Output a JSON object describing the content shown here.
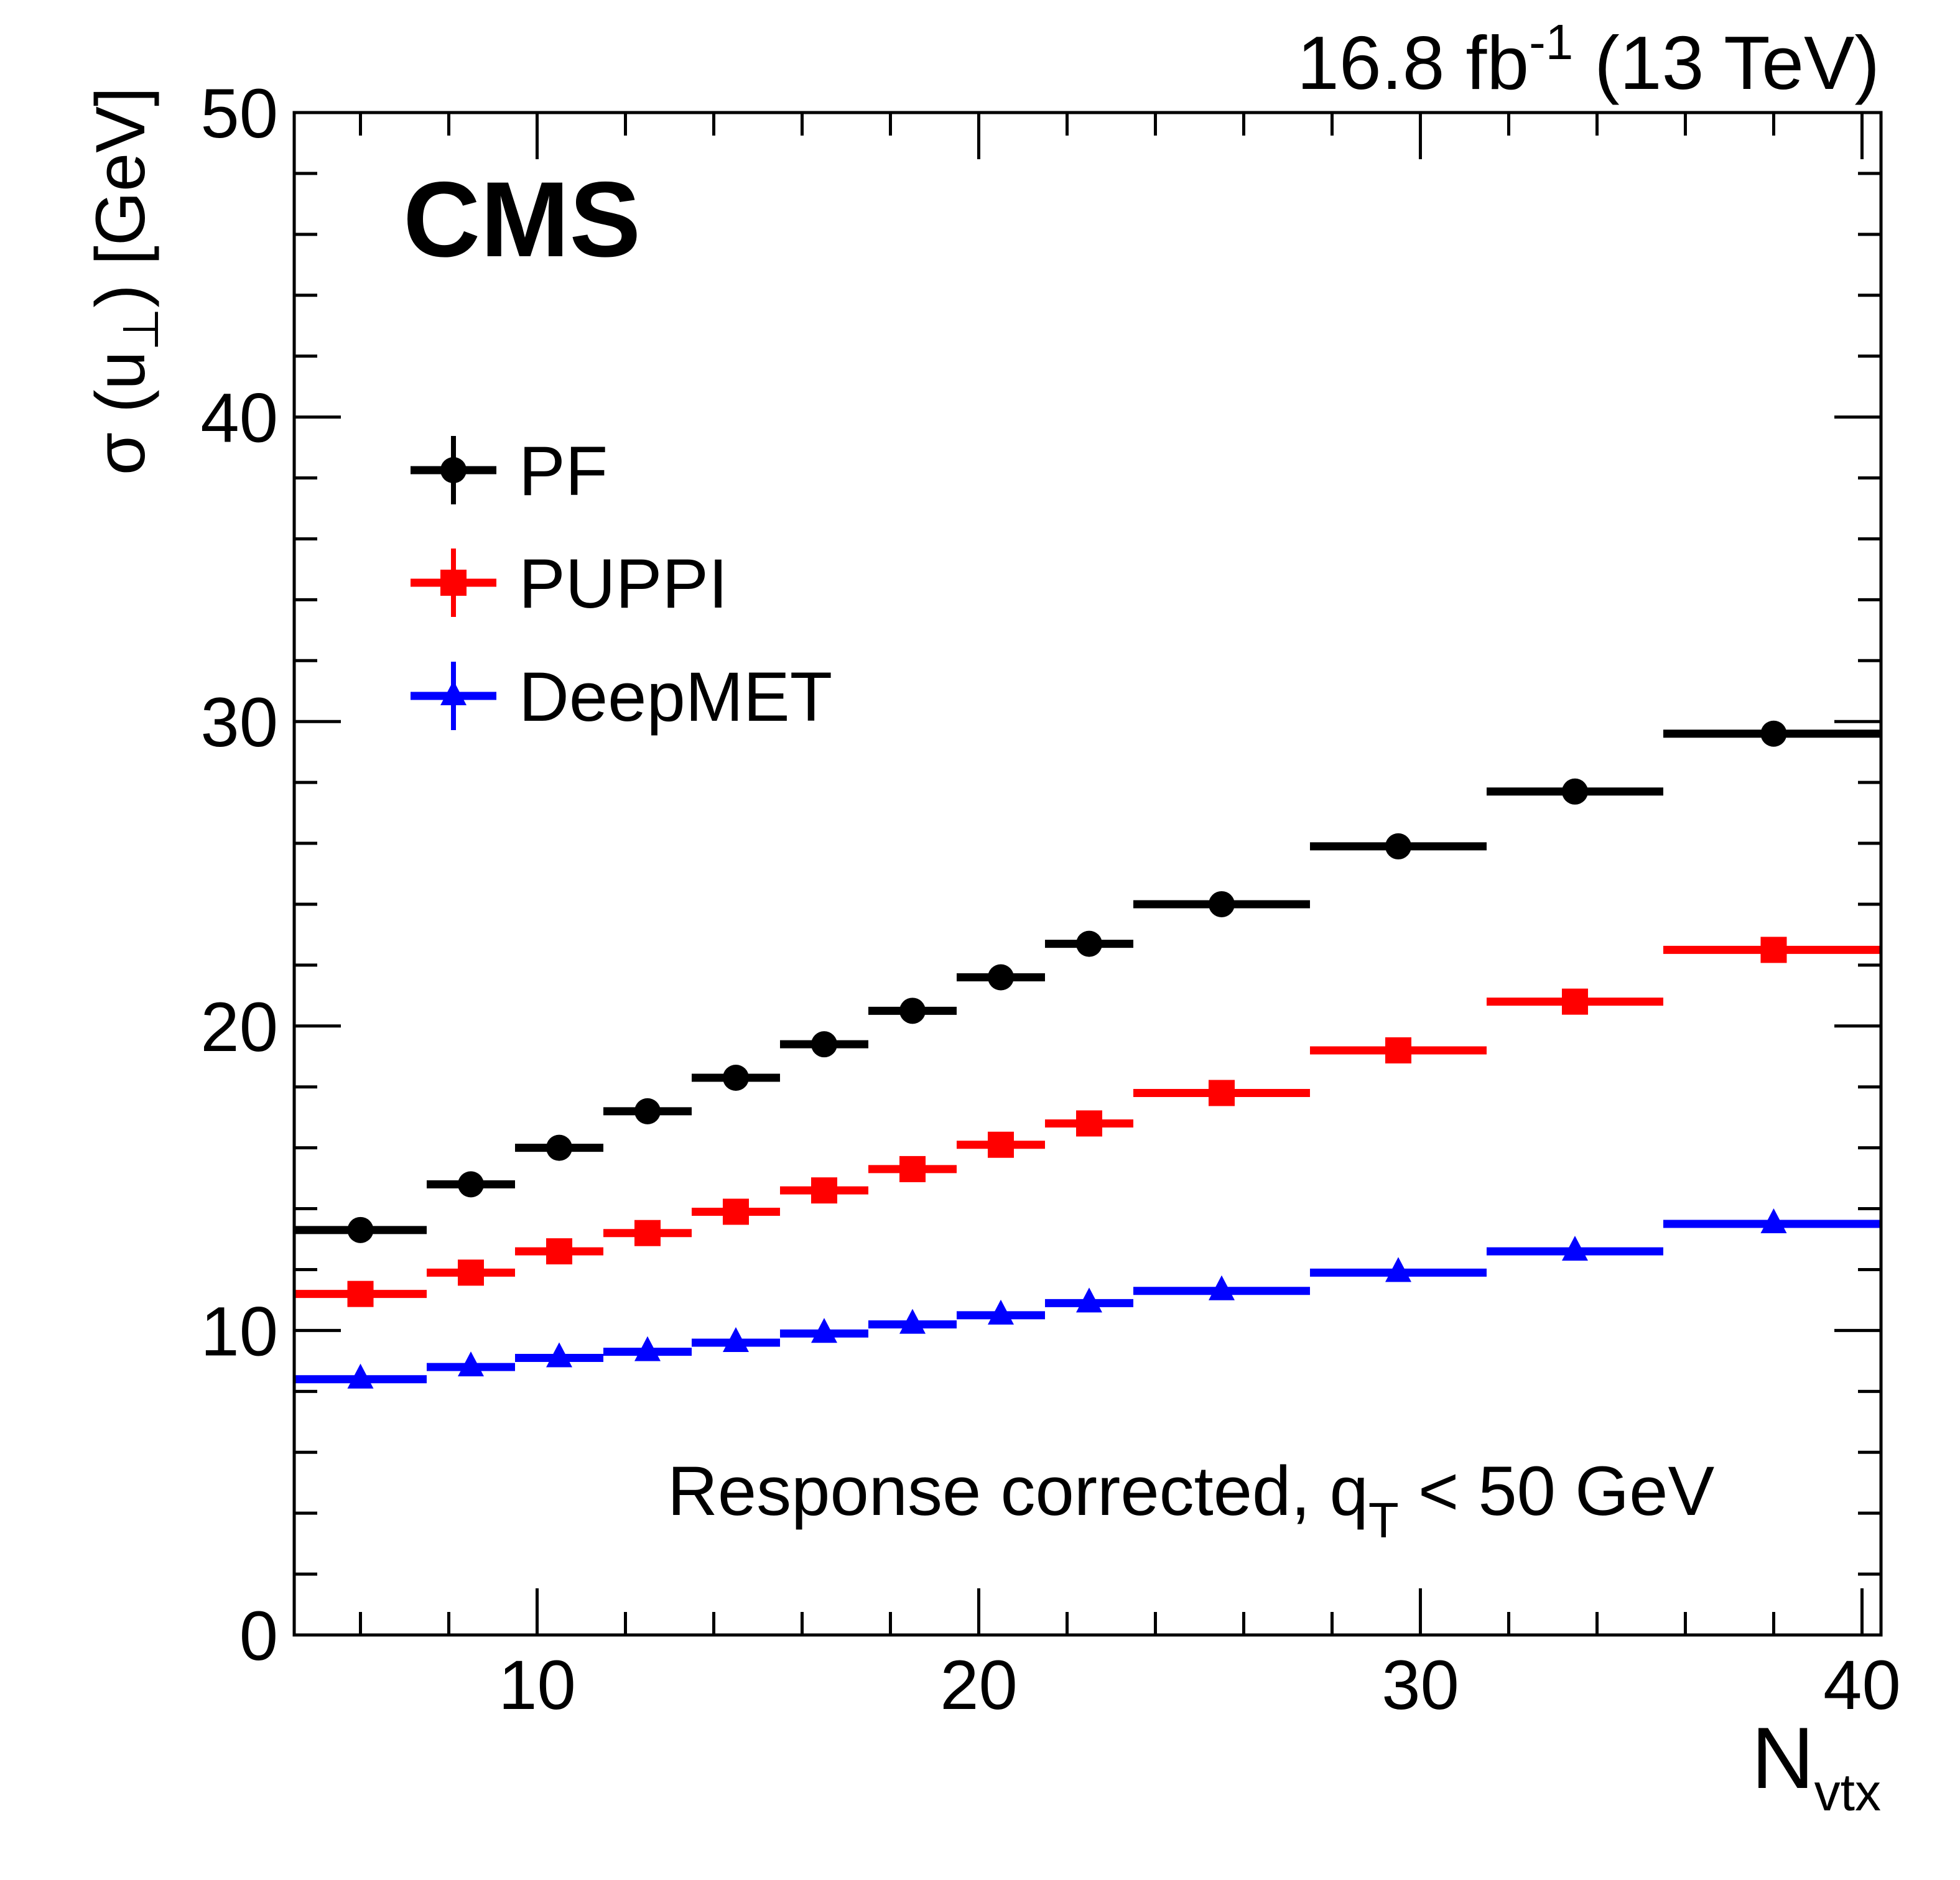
{
  "chart_data": {
    "type": "scatter",
    "style": "binned points with horizontal bin-width error bars",
    "experiment_label": "CMS",
    "lumi_label": {
      "main": "16.8 fb",
      "sup": "-1",
      "rest": " (13 TeV)"
    },
    "annotation": {
      "main": "Response corrected, q",
      "sub": "T",
      "rest": " < 50 GeV"
    },
    "xlabel": {
      "main": "N",
      "sub": "vtx"
    },
    "ylabel": {
      "pre": "σ (u",
      "sub": "⊥",
      "post": ") [GeV]"
    },
    "xlim": [
      4.5,
      40.43
    ],
    "ylim": [
      0,
      50
    ],
    "x_major_ticks": [
      10,
      20,
      30,
      40
    ],
    "x_minor_step": 2,
    "y_major_ticks": [
      0,
      10,
      20,
      30,
      40,
      50
    ],
    "y_minor_step": 2,
    "grid": false,
    "legend_position": "top-left",
    "bins": [
      [
        4.5,
        7.5
      ],
      [
        7.5,
        9.5
      ],
      [
        9.5,
        11.5
      ],
      [
        11.5,
        13.5
      ],
      [
        13.5,
        15.5
      ],
      [
        15.5,
        17.5
      ],
      [
        17.5,
        19.5
      ],
      [
        19.5,
        21.5
      ],
      [
        21.5,
        23.5
      ],
      [
        23.5,
        27.5
      ],
      [
        27.5,
        31.5
      ],
      [
        31.5,
        35.5
      ],
      [
        35.5,
        40.5
      ]
    ],
    "x": [
      6,
      8.5,
      10.5,
      12.5,
      14.5,
      16.5,
      18.5,
      20.5,
      22.5,
      25.5,
      29.5,
      33.5,
      38
    ],
    "series": [
      {
        "name": "PF",
        "color": "#000000",
        "marker": "circle",
        "values": [
          13.3,
          14.8,
          16.0,
          17.2,
          18.3,
          19.4,
          20.5,
          21.6,
          22.7,
          24.0,
          25.9,
          27.7,
          29.6
        ]
      },
      {
        "name": "PUPPI",
        "color": "#ff0000",
        "marker": "square",
        "values": [
          11.2,
          11.9,
          12.6,
          13.2,
          13.9,
          14.6,
          15.3,
          16.1,
          16.8,
          17.8,
          19.2,
          20.8,
          22.5
        ]
      },
      {
        "name": "DeepMET",
        "color": "#0000ff",
        "marker": "triangle",
        "values": [
          8.4,
          8.8,
          9.1,
          9.3,
          9.6,
          9.9,
          10.2,
          10.5,
          10.9,
          11.3,
          11.9,
          12.6,
          13.5
        ]
      }
    ]
  }
}
